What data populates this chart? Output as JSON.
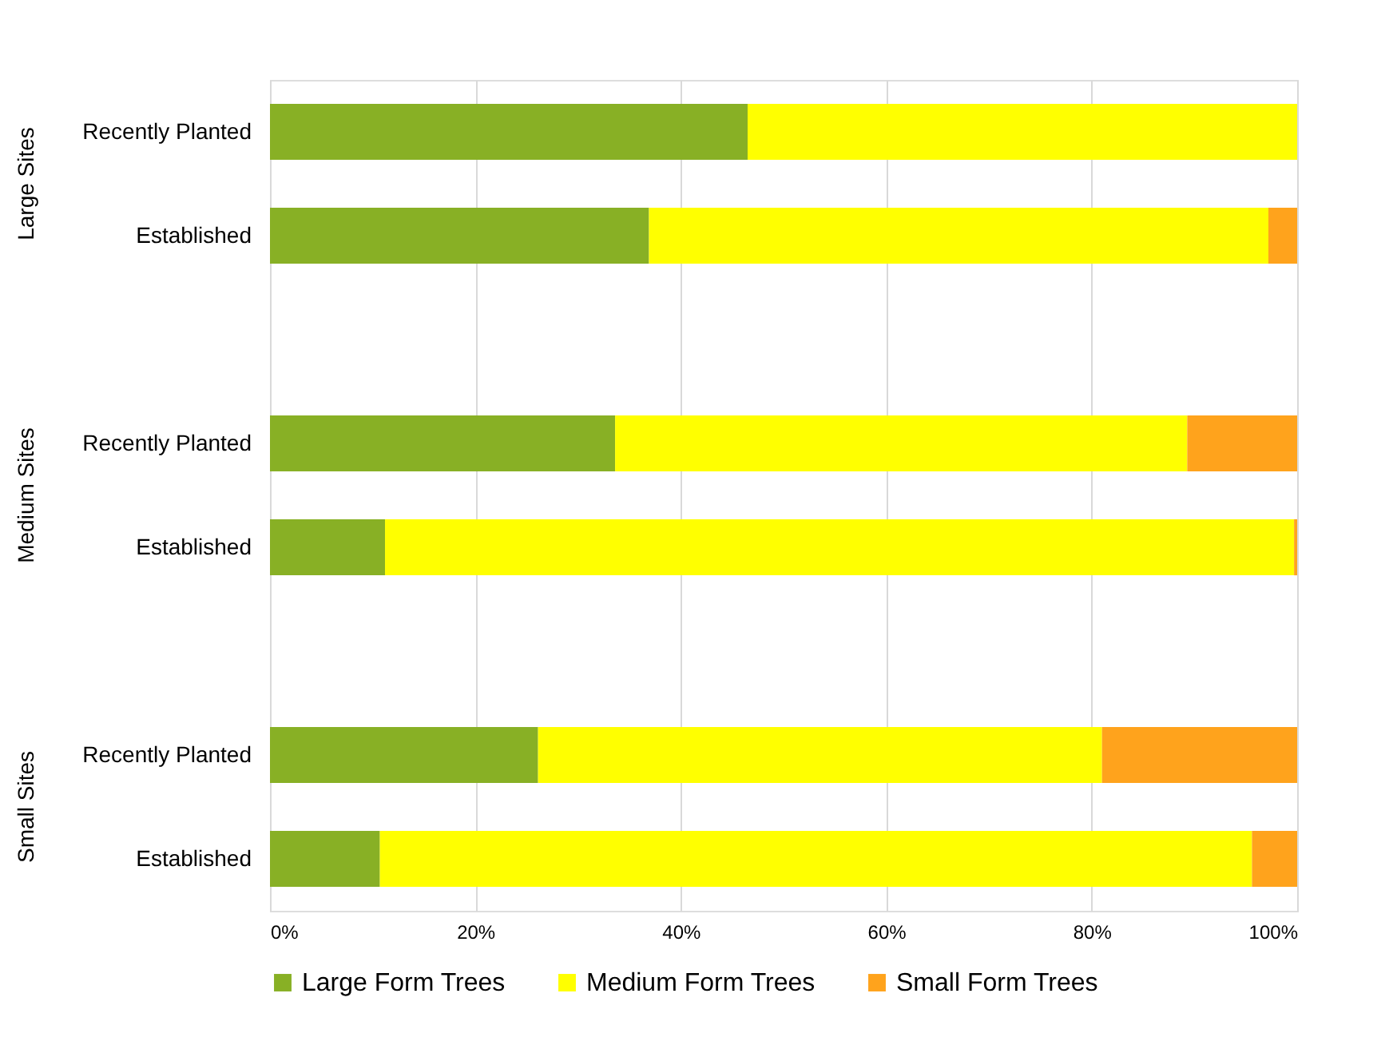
{
  "chart_data": {
    "type": "bar",
    "orientation": "horizontal",
    "stacked": true,
    "categories": [
      "Recently Planted",
      "Established",
      null,
      "Recently Planted",
      "Established",
      null,
      "Recently Planted",
      "Established"
    ],
    "annotations": [
      "Large Sites",
      "Medium Sites",
      "Small Sites"
    ],
    "series": [
      {
        "name": "Large Form Trees",
        "color": "#88b025",
        "values": [
          46.5,
          36.9,
          null,
          33.6,
          11.2,
          null,
          26.1,
          10.7
        ]
      },
      {
        "name": "Medium Form Trees",
        "color": "#ffff00",
        "values": [
          53.5,
          60.3,
          null,
          55.7,
          88.5,
          null,
          54.9,
          84.9
        ]
      },
      {
        "name": "Small Form Trees",
        "color": "#ffa31c",
        "values": [
          0,
          2.8,
          null,
          10.7,
          0.3,
          null,
          19.0,
          4.4
        ]
      }
    ],
    "xlim": [
      0,
      100
    ],
    "xticks": [
      {
        "value": 0,
        "label": "0%"
      },
      {
        "value": 20,
        "label": "20%"
      },
      {
        "value": 40,
        "label": "40%"
      },
      {
        "value": 60,
        "label": "60%"
      },
      {
        "value": 80,
        "label": "80%"
      },
      {
        "value": 100,
        "label": "100%"
      }
    ],
    "grid": "x",
    "legend": "bottom"
  }
}
